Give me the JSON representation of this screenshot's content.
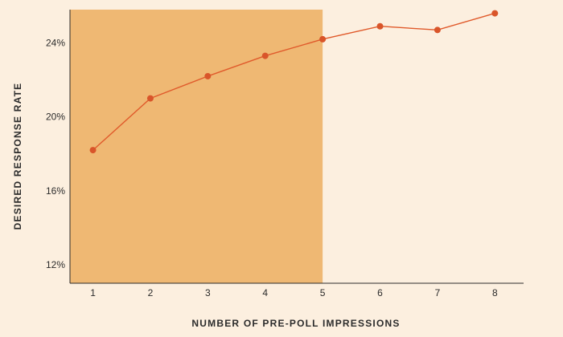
{
  "chart_data": {
    "type": "line",
    "title": "",
    "xlabel": "NUMBER OF PRE-POLL IMPRESSIONS",
    "ylabel": "DESIRED RESPONSE RATE",
    "x": [
      1,
      2,
      3,
      4,
      5,
      6,
      7,
      8
    ],
    "x_tick_labels": [
      "1",
      "2",
      "3",
      "4",
      "5",
      "6",
      "7",
      "8"
    ],
    "y_ticks": [
      12,
      16,
      20,
      24
    ],
    "y_tick_labels": [
      "12%",
      "16%",
      "20%",
      "24%"
    ],
    "ylim": [
      11.0,
      25.8
    ],
    "xlim": [
      0.6,
      8.5
    ],
    "series": [
      {
        "values": [
          18.2,
          21.0,
          22.2,
          23.3,
          24.2,
          24.9,
          24.7,
          25.6
        ]
      }
    ],
    "highlight_region": {
      "x_start": 0.6,
      "x_end": 5
    },
    "grid": false,
    "legend": "none",
    "colors": {
      "background": "#fcefdf",
      "highlight": "#efb873",
      "line": "#e05a2b",
      "marker": "#d9552a",
      "axis": "#2b2b2b"
    }
  }
}
